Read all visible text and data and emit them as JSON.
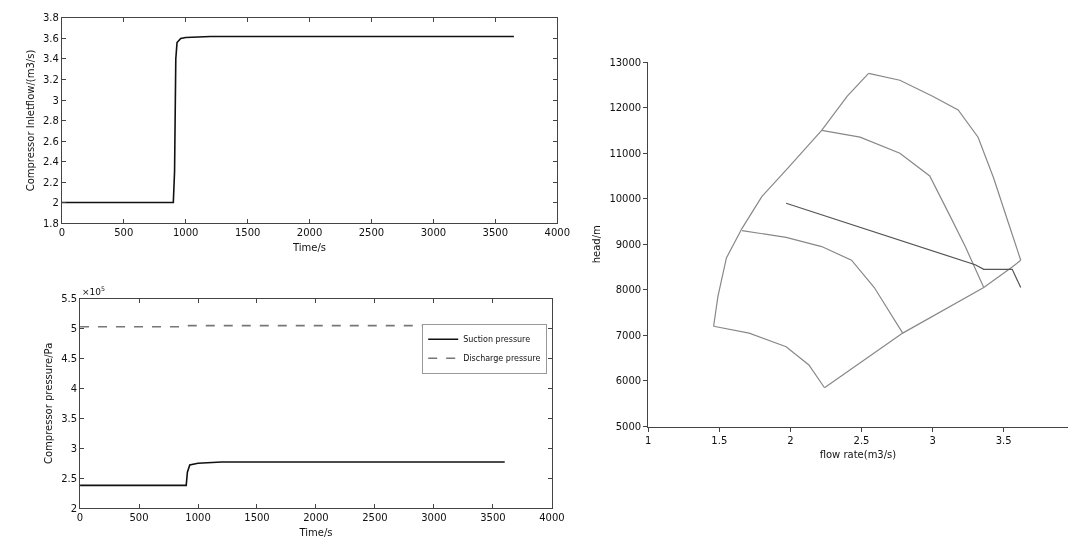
{
  "chart_data": [
    {
      "type": "line",
      "xlabel": "Time/s",
      "ylabel": "Compressor Inletflow/(m3/s)",
      "xlim": [
        0,
        4000
      ],
      "xticks": [
        0,
        500,
        1000,
        1500,
        2000,
        2500,
        3000,
        3500,
        4000
      ],
      "ylim": [
        1.8,
        3.8
      ],
      "yticks": [
        1.8,
        2,
        2.2,
        2.4,
        2.6,
        2.8,
        3,
        3.2,
        3.4,
        3.6,
        3.8
      ],
      "legend": false,
      "marker": "none",
      "series": [
        {
          "color": "#111111",
          "line_style": "solid",
          "x": [
            0,
            900,
            910,
            920,
            930,
            960,
            1000,
            1200,
            3650
          ],
          "values": [
            2,
            2,
            2.3,
            3.4,
            3.56,
            3.6,
            3.61,
            3.62,
            3.62
          ]
        }
      ]
    },
    {
      "type": "line",
      "xlabel": "Time/s",
      "ylabel": "Compressor pressure/Pa",
      "annotations": [
        "×10$^{5}$"
      ],
      "xlim": [
        0,
        4000
      ],
      "xticks": [
        0,
        500,
        1000,
        1500,
        2000,
        2500,
        3000,
        3500,
        4000
      ],
      "ylim": [
        2,
        5.5
      ],
      "yticks": [
        2,
        2.5,
        3,
        3.5,
        4,
        4.5,
        5,
        5.5
      ],
      "legend": "top right",
      "marker": "none",
      "series": [
        {
          "name": "Suction pressure",
          "color": "#111111",
          "line_style": "solid",
          "x": [
            0,
            900,
            910,
            930,
            1000,
            1200,
            3600
          ],
          "values": [
            2.38,
            2.38,
            2.6,
            2.72,
            2.75,
            2.77,
            2.77
          ]
        },
        {
          "name": "Discharge pressure",
          "color": "#777777",
          "line_style": "dashed",
          "x": [
            0,
            900,
            920,
            3600
          ],
          "values": [
            5.03,
            5.03,
            5.05,
            5.05
          ]
        }
      ]
    },
    {
      "type": "line",
      "xlabel": "flow rate(m3/s)",
      "ylabel": "head/m",
      "xlim": [
        1,
        3.95
      ],
      "xticks": [
        1,
        1.5,
        2,
        2.5,
        3,
        3.5
      ],
      "ylim": [
        5000,
        13000
      ],
      "yticks": [
        5000,
        6000,
        7000,
        8000,
        9000,
        10000,
        11000,
        12000,
        13000
      ],
      "legend": false,
      "marker": "none",
      "series": [
        {
          "color": "#888888",
          "line_style": "solid",
          "x": [
            1.46,
            1.49,
            1.55,
            1.66,
            1.8,
            1.99,
            2.22,
            2.4,
            2.55
          ],
          "values": [
            7200,
            7850,
            8700,
            9350,
            10050,
            10700,
            11500,
            12250,
            12750
          ]
        },
        {
          "color": "#888888",
          "line_style": "solid",
          "x": [
            2.55,
            2.77,
            3.0,
            3.18,
            3.32,
            3.43,
            3.53,
            3.62
          ],
          "values": [
            12750,
            12600,
            12250,
            11950,
            11350,
            10450,
            9500,
            8650
          ]
        },
        {
          "color": "#888888",
          "line_style": "solid",
          "x": [
            2.22,
            2.49,
            2.77,
            2.98,
            3.11,
            3.23,
            3.36
          ],
          "values": [
            11500,
            11350,
            11000,
            10500,
            9700,
            8950,
            8050
          ]
        },
        {
          "color": "#888888",
          "line_style": "solid",
          "x": [
            1.66,
            1.97,
            2.22,
            2.43,
            2.59,
            2.79
          ],
          "values": [
            9300,
            9150,
            8950,
            8650,
            8050,
            7050
          ]
        },
        {
          "color": "#888888",
          "line_style": "solid",
          "x": [
            1.46,
            1.71,
            1.97,
            2.13,
            2.24
          ],
          "values": [
            7200,
            7050,
            6750,
            6350,
            5850
          ]
        },
        {
          "color": "#888888",
          "line_style": "solid",
          "x": [
            2.24,
            2.79,
            3.36,
            3.56,
            3.62
          ],
          "values": [
            5850,
            7050,
            8050,
            8500,
            8650
          ]
        },
        {
          "color": "#555555",
          "line_style": "solid",
          "x": [
            1.97,
            3.3,
            3.36,
            3.56,
            3.62
          ],
          "values": [
            9900,
            8550,
            8450,
            8450,
            8050
          ]
        }
      ]
    }
  ]
}
